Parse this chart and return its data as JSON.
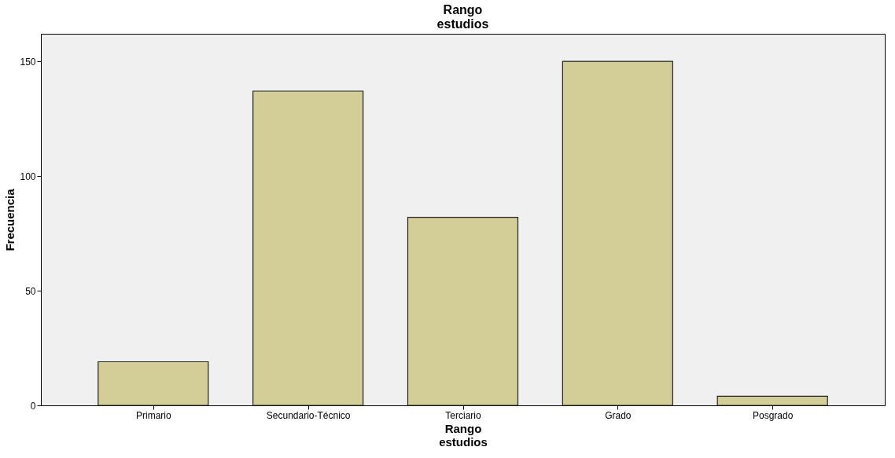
{
  "chart_data": {
    "type": "bar",
    "title": "Rango estudios",
    "xlabel": "Rango estudios",
    "ylabel": "Frecuencia",
    "categories": [
      "Primario",
      "Secundario-Técnico",
      "Terciario",
      "Grado",
      "Posgrado"
    ],
    "values": [
      19,
      137,
      82,
      150,
      4
    ],
    "color": "#d3ce97",
    "ylim": [
      0,
      162
    ],
    "yticks": [
      0,
      50,
      100,
      150
    ],
    "grid": false
  }
}
